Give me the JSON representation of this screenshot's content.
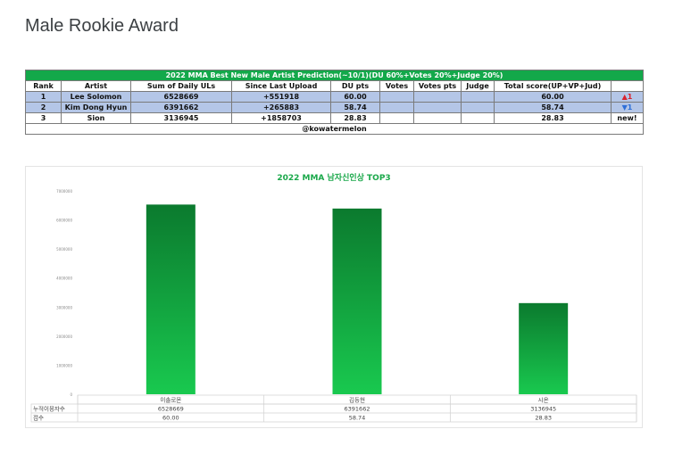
{
  "page": {
    "title": "Male Rookie Award"
  },
  "table": {
    "banner": "2022 MMA Best New Male Artist Prediction(~10/1)(DU 60%+Votes 20%+Judge 20%)",
    "headers": [
      "Rank",
      "Artist",
      "Sum of Daily ULs",
      "Since Last Upload",
      "DU pts",
      "Votes",
      "Votes pts",
      "Judge",
      "Total score(UP+VP+Jud)",
      ""
    ],
    "rows": [
      {
        "rank": "1",
        "artist": "Lee Solomon",
        "sum": "6528669",
        "since": "+551918",
        "du": "60.00",
        "votes": "",
        "votes_pts": "",
        "judge": "",
        "total": "60.00",
        "change": "▲1",
        "change_type": "up"
      },
      {
        "rank": "2",
        "artist": "Kim Dong Hyun",
        "sum": "6391662",
        "since": "+265883",
        "du": "58.74",
        "votes": "",
        "votes_pts": "",
        "judge": "",
        "total": "58.74",
        "change": "▼1",
        "change_type": "down"
      },
      {
        "rank": "3",
        "artist": "Sion",
        "sum": "3136945",
        "since": "+1858703",
        "du": "28.83",
        "votes": "",
        "votes_pts": "",
        "judge": "",
        "total": "28.83",
        "change": "new!",
        "change_type": "new"
      }
    ],
    "footer": "@kowatermelon"
  },
  "chart_data": {
    "type": "bar",
    "title": "2022 MMA 남자신인상 TOP3",
    "categories": [
      "이솔로몬",
      "김동현",
      "시온"
    ],
    "series": [
      {
        "name": "누적이용자수",
        "values": [
          6528669,
          6391662,
          3136945
        ]
      }
    ],
    "table_rows": [
      {
        "label": "누적이용자수",
        "values": [
          "6528669",
          "6391662",
          "3136945"
        ]
      },
      {
        "label": "점수",
        "values": [
          "60.00",
          "58.74",
          "28.83"
        ]
      }
    ],
    "ylim": [
      0,
      7000000
    ],
    "yticks": [
      "0",
      "1000000",
      "2000000",
      "3000000",
      "4000000",
      "5000000",
      "6000000",
      "7000000"
    ],
    "colors": {
      "bar_top": "#0b7a2e",
      "bar_bottom": "#19c94f",
      "title": "#1aa84a"
    },
    "grid": false,
    "legend": "none"
  }
}
